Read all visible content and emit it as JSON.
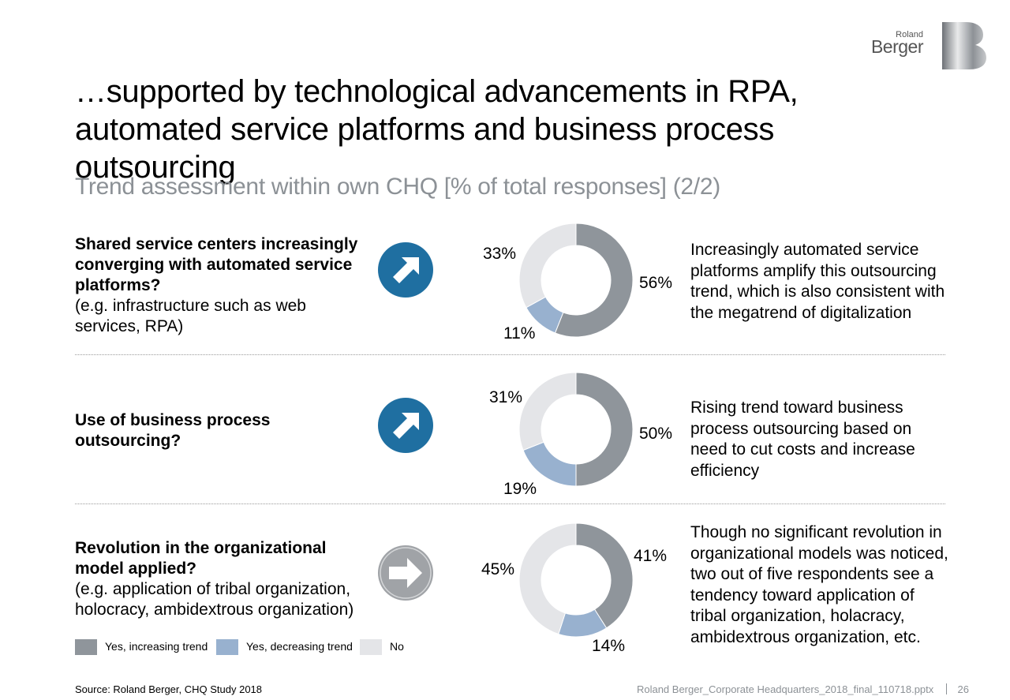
{
  "logo": {
    "line1": "Roland",
    "line2": "Berger"
  },
  "title": "…supported by technological advancements in RPA, automated service platforms and business process outsourcing",
  "subtitle": "Trend assessment within own CHQ [% of total responses] (2/2)",
  "colors": {
    "yes_increasing": "#8f959b",
    "yes_decreasing": "#98b1cf",
    "no": "#e4e5e8",
    "arrow_up": "#1f6fa1",
    "arrow_flat": "#a0a3a7"
  },
  "rows": [
    {
      "question_bold": "Shared service centers increasingly converging with automated service platforms?",
      "question_note": "(e.g. infrastructure such as web services, RPA)",
      "arrow_icon": "arrow-up-right-icon",
      "labels": {
        "yes_increasing": "56%",
        "yes_decreasing": "11%",
        "no": "33%"
      },
      "comment": "Increasingly automated service platforms amplify this outsourcing trend, which is also consistent with the megatrend of digitalization"
    },
    {
      "question_bold": "Use of business process outsourcing?",
      "question_note": "",
      "arrow_icon": "arrow-up-right-icon",
      "labels": {
        "yes_increasing": "50%",
        "yes_decreasing": "19%",
        "no": "31%"
      },
      "comment": "Rising trend toward business process outsourcing based on need to cut costs and increase efficiency"
    },
    {
      "question_bold": "Revolution in the organizational model applied?",
      "question_note": "(e.g. application of tribal organization, holocracy, ambidextrous organization)",
      "arrow_icon": "arrow-right-icon",
      "labels": {
        "yes_increasing": "41%",
        "yes_decreasing": "14%",
        "no": "45%"
      },
      "comment": "Though no significant revolution in organizational models was noticed, two out of five respondents see a tendency toward application of tribal organization, holacracy, ambidextrous organization, etc."
    }
  ],
  "legend": {
    "yes_increasing": "Yes, increasing trend",
    "yes_decreasing": "Yes, decreasing trend",
    "no": "No"
  },
  "source": "Source: Roland Berger, CHQ Study 2018",
  "footer": {
    "file": "Roland Berger_Corporate Headquarters_2018_final_110718.pptx",
    "page": "26"
  },
  "chart_data": [
    {
      "type": "pie",
      "title": "",
      "categories": [
        "Yes, increasing trend",
        "Yes, decreasing trend",
        "No"
      ],
      "values": [
        56,
        11,
        33
      ],
      "style": "donut"
    },
    {
      "type": "pie",
      "title": "",
      "categories": [
        "Yes, increasing trend",
        "Yes, decreasing trend",
        "No"
      ],
      "values": [
        50,
        19,
        31
      ],
      "style": "donut"
    },
    {
      "type": "pie",
      "title": "",
      "categories": [
        "Yes, increasing trend",
        "Yes, decreasing trend",
        "No"
      ],
      "values": [
        41,
        14,
        45
      ],
      "style": "donut"
    }
  ]
}
